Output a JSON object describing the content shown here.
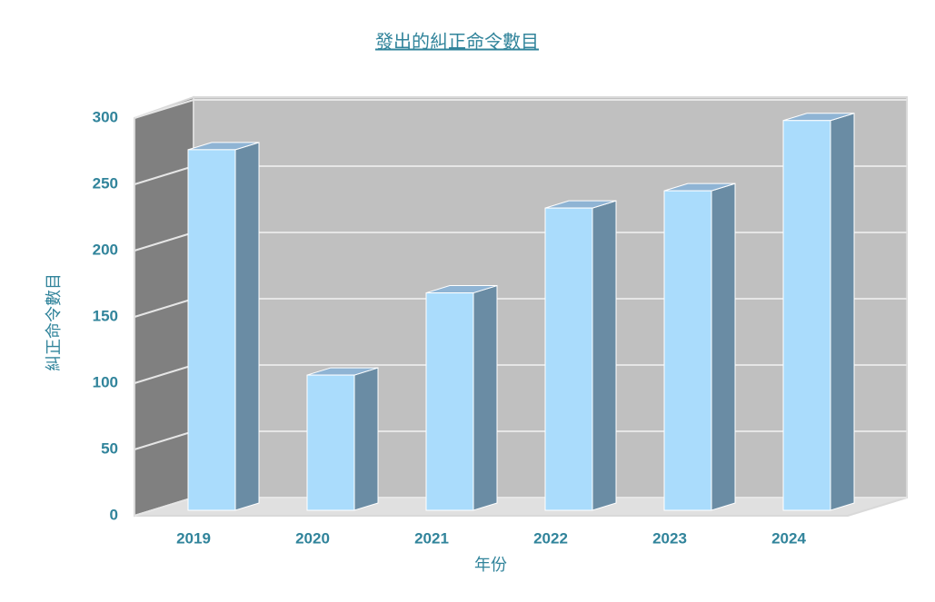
{
  "chart_data": {
    "type": "bar3d",
    "title": "發出的糾正命令數目",
    "x_label": "年份",
    "y_label": "糾正命令數目",
    "categories": [
      "2019",
      "2020",
      "2021",
      "2022",
      "2023",
      "2024"
    ],
    "values": [
      272,
      102,
      164,
      228,
      241,
      294
    ],
    "color": "#aadcfc",
    "ylim": [
      0,
      300
    ],
    "yticks": [
      0,
      50,
      100,
      150,
      200,
      250,
      300
    ],
    "grid": true
  }
}
